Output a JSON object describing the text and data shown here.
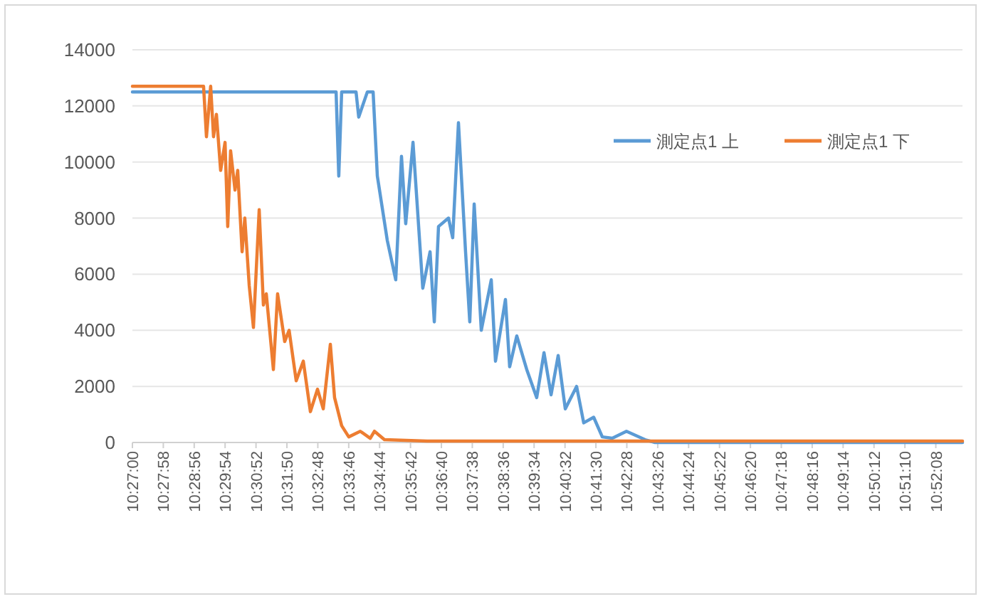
{
  "chart_data": {
    "type": "line",
    "xlim": [
      10.45,
      10.8828
    ],
    "xticks": [
      {
        "value": 10.45,
        "label": "10:27:00"
      },
      {
        "value": 10.46611,
        "label": "10:27:58"
      },
      {
        "value": 10.48222,
        "label": "10:28:56"
      },
      {
        "value": 10.49833,
        "label": "10:29:54"
      },
      {
        "value": 10.51444,
        "label": "10:30:52"
      },
      {
        "value": 10.53056,
        "label": "10:31:50"
      },
      {
        "value": 10.54667,
        "label": "10:32:48"
      },
      {
        "value": 10.56278,
        "label": "10:33:46"
      },
      {
        "value": 10.57889,
        "label": "10:34:44"
      },
      {
        "value": 10.595,
        "label": "10:35:42"
      },
      {
        "value": 10.61111,
        "label": "10:36:40"
      },
      {
        "value": 10.62722,
        "label": "10:37:38"
      },
      {
        "value": 10.64333,
        "label": "10:38:36"
      },
      {
        "value": 10.65944,
        "label": "10:39:34"
      },
      {
        "value": 10.67556,
        "label": "10:40:32"
      },
      {
        "value": 10.69167,
        "label": "10:41:30"
      },
      {
        "value": 10.70778,
        "label": "10:42:28"
      },
      {
        "value": 10.72389,
        "label": "10:43:26"
      },
      {
        "value": 10.74,
        "label": "10:44:24"
      },
      {
        "value": 10.75611,
        "label": "10:45:22"
      },
      {
        "value": 10.77222,
        "label": "10:46:20"
      },
      {
        "value": 10.78833,
        "label": "10:47:18"
      },
      {
        "value": 10.80444,
        "label": "10:48:16"
      },
      {
        "value": 10.82056,
        "label": "10:49:14"
      },
      {
        "value": 10.83667,
        "label": "10:50:12"
      },
      {
        "value": 10.85278,
        "label": "10:51:10"
      },
      {
        "value": 10.86889,
        "label": "10:52:08"
      }
    ],
    "ylim": [
      0,
      14000
    ],
    "yticks": [
      0,
      2000,
      4000,
      6000,
      8000,
      10000,
      12000,
      14000
    ],
    "grid": "y",
    "legend": "top right",
    "marker": "none",
    "line_style": "solid",
    "series": [
      {
        "name": "測定点1 上",
        "color": "#5b9bd5",
        "x": [
          10.45,
          10.5562,
          10.5576,
          10.5591,
          10.5666,
          10.568,
          10.5725,
          10.5755,
          10.5777,
          10.5829,
          10.5873,
          10.5903,
          10.5925,
          10.5963,
          10.6014,
          10.6052,
          10.6074,
          10.6096,
          10.6148,
          10.617,
          10.62,
          10.6237,
          10.6259,
          10.6282,
          10.6319,
          10.6371,
          10.6393,
          10.6445,
          10.6467,
          10.6504,
          10.6556,
          10.6608,
          10.6646,
          10.6683,
          10.672,
          10.6757,
          10.6816,
          10.6853,
          10.6905,
          10.695,
          10.7002,
          10.7076,
          10.7173,
          10.7225,
          10.8828
        ],
        "values": [
          12500,
          12500,
          9500,
          12500,
          12500,
          11600,
          12500,
          12500,
          9500,
          7200,
          5800,
          10200,
          7800,
          10700,
          5500,
          6800,
          4300,
          7700,
          8000,
          7300,
          11400,
          6800,
          4300,
          8500,
          4000,
          5800,
          2900,
          5100,
          2700,
          3800,
          2600,
          1600,
          3200,
          1700,
          3100,
          1200,
          2000,
          700,
          900,
          200,
          150,
          400,
          100,
          0,
          0
        ]
      },
      {
        "name": "測定点1 下",
        "color": "#ed7d31",
        "x": [
          10.45,
          10.4871,
          10.4886,
          10.4908,
          10.4923,
          10.4938,
          10.496,
          10.4983,
          10.4997,
          10.5012,
          10.5035,
          10.5049,
          10.5072,
          10.5086,
          10.5109,
          10.5131,
          10.5161,
          10.5183,
          10.5198,
          10.5235,
          10.5257,
          10.5294,
          10.5317,
          10.5354,
          10.5391,
          10.5428,
          10.5465,
          10.5495,
          10.5532,
          10.5554,
          10.5591,
          10.5628,
          10.5688,
          10.574,
          10.5762,
          10.5814,
          10.6037,
          10.8828
        ],
        "values": [
          12700,
          12700,
          10900,
          12700,
          10900,
          11700,
          9700,
          10700,
          7700,
          10400,
          9000,
          9700,
          6800,
          8000,
          5600,
          4100,
          8300,
          4900,
          5300,
          2600,
          5300,
          3600,
          4000,
          2200,
          2900,
          1100,
          1900,
          1200,
          3500,
          1600,
          600,
          200,
          400,
          150,
          400,
          100,
          50,
          50
        ]
      }
    ]
  }
}
